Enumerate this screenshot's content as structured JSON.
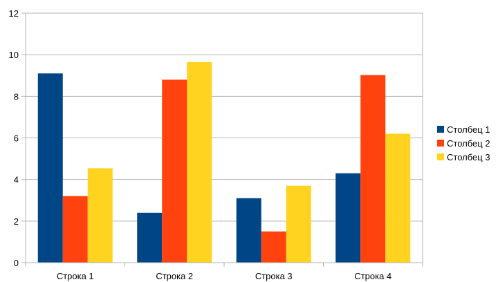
{
  "chart_data": {
    "type": "bar",
    "categories": [
      "Строка 1",
      "Строка 2",
      "Строка 3",
      "Строка 4"
    ],
    "series": [
      {
        "name": "Столбец 1",
        "values": [
          9.1,
          2.4,
          3.1,
          4.3
        ],
        "color": "#004586"
      },
      {
        "name": "Столбец 2",
        "values": [
          3.2,
          8.8,
          1.5,
          9.02
        ],
        "color": "#ff420e"
      },
      {
        "name": "Столбец 3",
        "values": [
          4.54,
          9.65,
          3.7,
          6.2
        ],
        "color": "#ffd320"
      }
    ],
    "title": "",
    "xlabel": "",
    "ylabel": "",
    "ylim": [
      0,
      12
    ],
    "yticks": [
      "0",
      "2",
      "4",
      "6",
      "8",
      "10",
      "12"
    ],
    "grid": true,
    "legend_position": "right"
  }
}
